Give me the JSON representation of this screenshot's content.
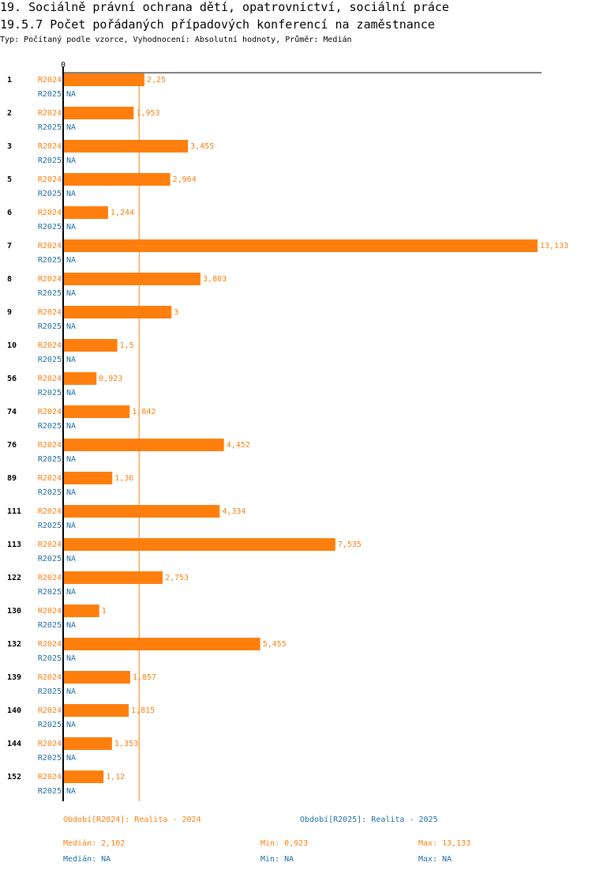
{
  "header": {
    "title1": "19. Sociálně právní ochrana dětí, opatrovnictví, sociální práce",
    "title2": "19.5.7 Počet pořádaných případových konferencí na zaměstnance",
    "subtitle": "Typ: Počítaný podle vzorce, Vyhodnocení: Absolutní hodnoty, Průměr: Medián"
  },
  "colors": {
    "r2024": "#ff7f0e",
    "r2025": "#1f6fa8",
    "axis": "#000000",
    "median_line": "#ff7f0e"
  },
  "chart_data": {
    "type": "bar",
    "orientation": "horizontal",
    "x_tick_label": "0",
    "xlim": [
      0,
      13.133
    ],
    "median_reference": 2.102,
    "categories": [
      "1",
      "2",
      "3",
      "5",
      "6",
      "7",
      "8",
      "9",
      "10",
      "56",
      "74",
      "76",
      "89",
      "111",
      "113",
      "122",
      "130",
      "132",
      "139",
      "140",
      "144",
      "152"
    ],
    "series": [
      {
        "name": "R2024",
        "values": [
          2.25,
          1.953,
          3.455,
          2.964,
          1.244,
          13.133,
          3.803,
          3,
          1.5,
          0.923,
          1.842,
          4.452,
          1.36,
          4.334,
          7.535,
          2.753,
          1,
          5.455,
          1.857,
          1.815,
          1.353,
          1.12
        ],
        "labels": [
          "2,25",
          "1,953",
          "3,455",
          "2,964",
          "1,244",
          "13,133",
          "3,803",
          "3",
          "1,5",
          "0,923",
          "1,842",
          "4,452",
          "1,36",
          "4,334",
          "7,535",
          "2,753",
          "1",
          "5,455",
          "1,857",
          "1,815",
          "1,353",
          "1,12"
        ]
      },
      {
        "name": "R2025",
        "values": [
          null,
          null,
          null,
          null,
          null,
          null,
          null,
          null,
          null,
          null,
          null,
          null,
          null,
          null,
          null,
          null,
          null,
          null,
          null,
          null,
          null,
          null
        ],
        "labels": [
          "NA",
          "NA",
          "NA",
          "NA",
          "NA",
          "NA",
          "NA",
          "NA",
          "NA",
          "NA",
          "NA",
          "NA",
          "NA",
          "NA",
          "NA",
          "NA",
          "NA",
          "NA",
          "NA",
          "NA",
          "NA",
          "NA"
        ]
      }
    ]
  },
  "footer": {
    "period_2024": "Období[R2024]: Realita - 2024",
    "period_2025": "Období[R2025]: Realita - 2025",
    "median_2024": "Medián: 2,102",
    "min_2024": "Min: 0,923",
    "max_2024": "Max: 13,133",
    "median_2025": "Medián: NA",
    "min_2025": "Min: NA",
    "max_2025": "Max: NA"
  }
}
